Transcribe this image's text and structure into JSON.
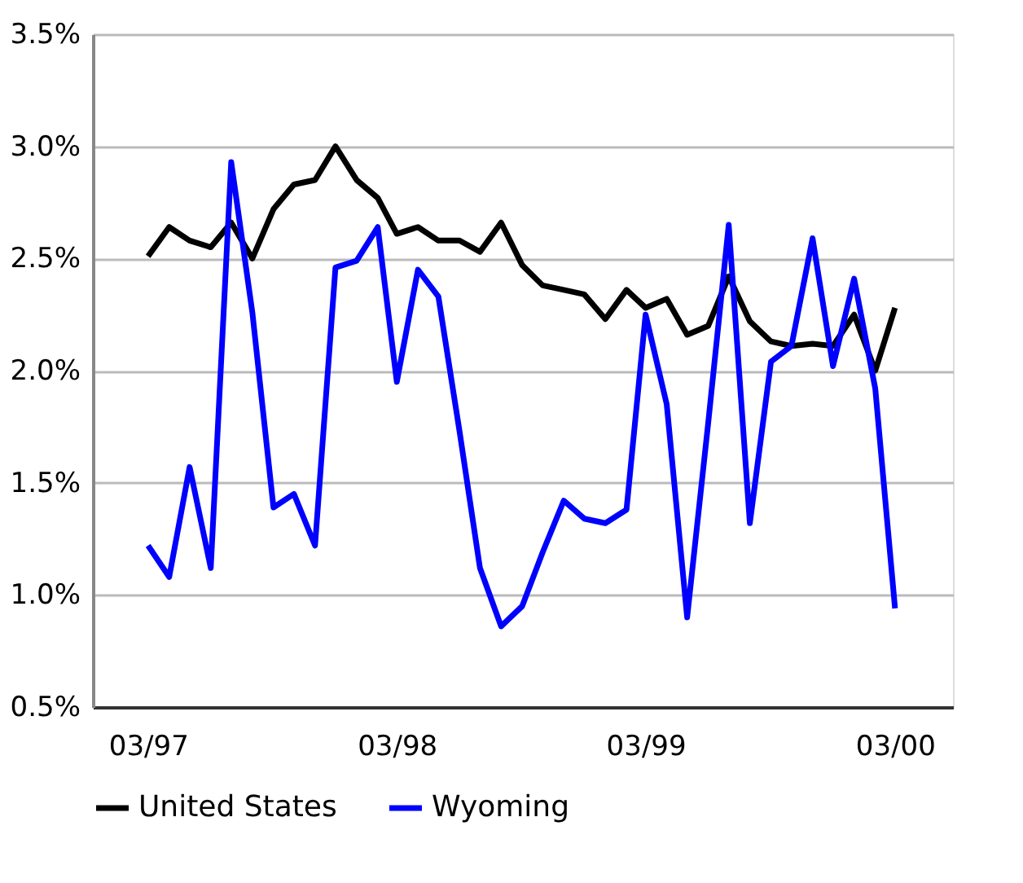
{
  "chart_data": {
    "type": "line",
    "x": [
      "1997-03",
      "1997-04",
      "1997-05",
      "1997-06",
      "1997-07",
      "1997-08",
      "1997-09",
      "1997-10",
      "1997-11",
      "1997-12",
      "1998-01",
      "1998-02",
      "1998-03",
      "1998-04",
      "1998-05",
      "1998-06",
      "1998-07",
      "1998-08",
      "1998-09",
      "1998-10",
      "1998-11",
      "1998-12",
      "1999-01",
      "1999-02",
      "1999-03",
      "1999-04",
      "1999-05",
      "1999-06",
      "1999-07",
      "1999-08",
      "1999-09",
      "1999-10",
      "1999-11",
      "1999-12",
      "2000-01",
      "2000-02",
      "2000-03"
    ],
    "series": [
      {
        "name": "United States",
        "color": "#000000",
        "values": [
          2.51,
          2.64,
          2.58,
          2.55,
          2.66,
          2.5,
          2.72,
          2.83,
          2.85,
          3.0,
          2.85,
          2.77,
          2.61,
          2.64,
          2.58,
          2.58,
          2.53,
          2.66,
          2.47,
          2.38,
          2.36,
          2.34,
          2.23,
          2.36,
          2.28,
          2.32,
          2.16,
          2.2,
          2.42,
          2.22,
          2.13,
          2.11,
          2.12,
          2.11,
          2.25,
          2.0,
          2.28
        ]
      },
      {
        "name": "Wyoming",
        "color": "#0000ff",
        "values": [
          1.22,
          1.08,
          1.57,
          1.12,
          2.93,
          2.26,
          1.39,
          1.45,
          1.22,
          2.46,
          2.49,
          2.64,
          1.95,
          2.45,
          2.33,
          1.73,
          1.12,
          0.86,
          0.95,
          1.19,
          1.42,
          1.34,
          1.32,
          1.38,
          2.25,
          1.85,
          0.9,
          1.77,
          2.65,
          1.32,
          2.04,
          2.11,
          2.59,
          2.02,
          2.41,
          1.92,
          0.94
        ]
      }
    ],
    "xlim": [
      "1996-12-10",
      "2000-05-25"
    ],
    "xticks": [
      {
        "value": "1997-03",
        "label": "03/97"
      },
      {
        "value": "1998-03",
        "label": "03/98"
      },
      {
        "value": "1999-03",
        "label": "03/99"
      },
      {
        "value": "2000-03",
        "label": "03/00"
      }
    ],
    "ylim": [
      0.5,
      3.5
    ],
    "yticks": [
      {
        "value": 0.5,
        "label": "0.5%"
      },
      {
        "value": 1.0,
        "label": "1.0%"
      },
      {
        "value": 1.5,
        "label": "1.5%"
      },
      {
        "value": 2.0,
        "label": "2.0%"
      },
      {
        "value": 2.5,
        "label": "2.5%"
      },
      {
        "value": 3.0,
        "label": "3.0%"
      },
      {
        "value": 3.5,
        "label": "3.5%"
      }
    ],
    "grid": "y",
    "legend": "bottom",
    "marker": "none",
    "line_style": "solid"
  }
}
